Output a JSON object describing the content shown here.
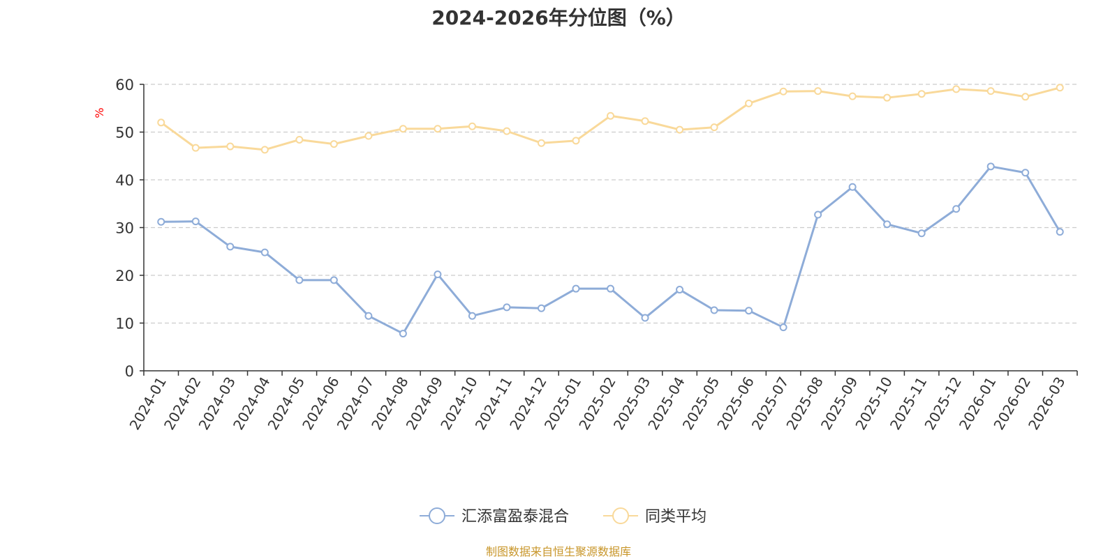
{
  "chart_data": {
    "type": "line",
    "title": "2024-2026年分位图（%）",
    "ylabel": "%",
    "ylim": [
      0,
      60
    ],
    "yticks": [
      0,
      10,
      20,
      30,
      40,
      50,
      60
    ],
    "grid": true,
    "legend_position": "bottom",
    "categories": [
      "2024-01",
      "2024-02",
      "2024-03",
      "2024-04",
      "2024-05",
      "2024-06",
      "2024-07",
      "2024-08",
      "2024-09",
      "2024-10",
      "2024-11",
      "2024-12",
      "2025-01",
      "2025-02",
      "2025-03",
      "2025-04",
      "2025-05",
      "2025-06",
      "2025-07",
      "2025-08",
      "2025-09",
      "2025-10",
      "2025-11",
      "2025-12",
      "2026-01",
      "2026-02",
      "2026-03"
    ],
    "series": [
      {
        "name": "汇添富盈泰混合",
        "color": "#8eacd8",
        "values": [
          31.2,
          31.3,
          26.0,
          24.8,
          19.0,
          19.0,
          11.5,
          7.8,
          20.2,
          11.5,
          13.3,
          13.1,
          17.2,
          17.2,
          11.1,
          17.0,
          12.7,
          12.6,
          9.1,
          32.7,
          38.5,
          30.7,
          28.8,
          33.9,
          42.8,
          41.5,
          29.1
        ]
      },
      {
        "name": "同类平均",
        "color": "#f9d99a",
        "values": [
          52.0,
          46.7,
          47.0,
          46.3,
          48.4,
          47.5,
          49.2,
          50.7,
          50.7,
          51.2,
          50.2,
          47.7,
          48.2,
          53.4,
          52.3,
          50.5,
          51.0,
          56.0,
          58.5,
          58.6,
          57.5,
          57.2,
          58.0,
          59.0,
          58.6,
          57.4,
          59.3
        ]
      }
    ]
  },
  "source_note": "制图数据来自恒生聚源数据库"
}
